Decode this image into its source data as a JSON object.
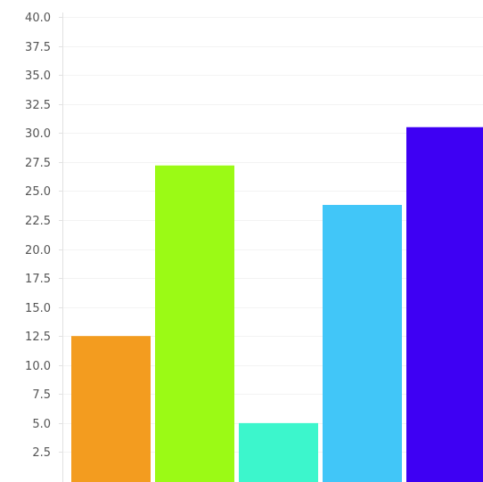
{
  "chart_data": {
    "type": "bar",
    "title": "",
    "xlabel": "",
    "ylabel": "",
    "ylim": [
      0,
      40
    ],
    "y_ticks": [
      "2.5",
      "5.0",
      "7.5",
      "10.0",
      "12.5",
      "15.0",
      "17.5",
      "20.0",
      "22.5",
      "25.0",
      "27.5",
      "30.0",
      "32.5",
      "35.0",
      "37.5",
      "40.0"
    ],
    "grid": true,
    "values": [
      12.5,
      27.2,
      5.0,
      23.8,
      30.5
    ],
    "colors": [
      "#F39C1F",
      "#9BFA15",
      "#3CF6CC",
      "#41C6F8",
      "#3E00F3"
    ]
  }
}
